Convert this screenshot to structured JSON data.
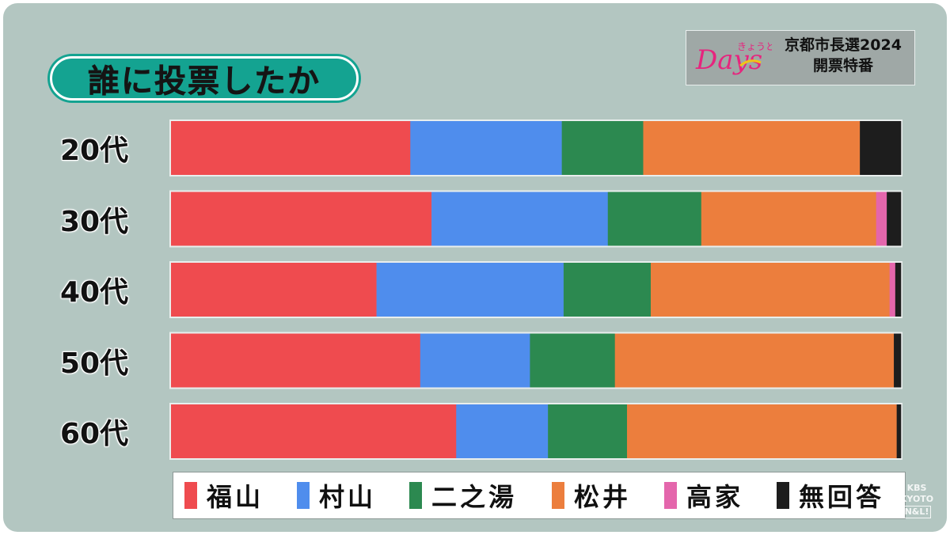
{
  "title": "誰に投票したか",
  "badge": {
    "logo_script": "Days",
    "logo_kana": "きょうと",
    "title": "京都市長選2024",
    "subtitle": "開票特番"
  },
  "watermark": {
    "line1": "KBS",
    "line2": "KYOTO",
    "line3": "N&L!"
  },
  "chart_data": {
    "type": "bar",
    "orientation": "horizontal",
    "stacked": true,
    "normalized": true,
    "title": "誰に投票したか",
    "categories": [
      "20代",
      "30代",
      "40代",
      "50代",
      "60代"
    ],
    "series": [
      {
        "name": "福山",
        "color": "#ef4b4f",
        "values": [
          33.8,
          36.8,
          29.0,
          35.2,
          40.4
        ]
      },
      {
        "name": "村山",
        "color": "#4f8ded",
        "values": [
          21.4,
          24.9,
          26.4,
          15.5,
          13.0
        ]
      },
      {
        "name": "二之湯",
        "color": "#2c8950",
        "values": [
          11.5,
          13.2,
          12.3,
          12.0,
          11.2
        ]
      },
      {
        "name": "松井",
        "color": "#ec7e3d",
        "values": [
          30.6,
          24.7,
          33.7,
          39.4,
          38.2
        ]
      },
      {
        "name": "高家",
        "color": "#e466ac",
        "values": [
          0.0,
          1.5,
          0.8,
          0.0,
          0.0
        ]
      },
      {
        "name": "無回答",
        "color": "#1d1d1d",
        "values": [
          5.8,
          2.0,
          0.8,
          1.0,
          0.6
        ]
      }
    ],
    "xlim": [
      0,
      100
    ],
    "legend_position": "bottom",
    "grid": false
  }
}
